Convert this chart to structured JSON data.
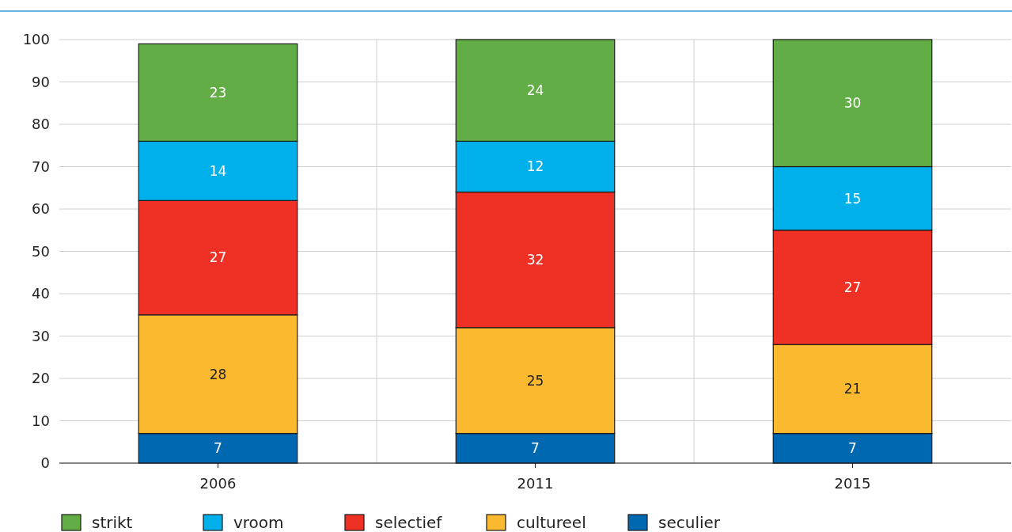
{
  "chart_data": {
    "type": "bar",
    "stacked": true,
    "categories": [
      "2006",
      "2011",
      "2015"
    ],
    "series": [
      {
        "name": "seculier",
        "color": "#0067b1",
        "values": [
          7,
          7,
          7
        ]
      },
      {
        "name": "cultureel",
        "color": "#fbb92f",
        "values": [
          28,
          25,
          21
        ]
      },
      {
        "name": "selectief",
        "color": "#ee3124",
        "values": [
          27,
          32,
          27
        ]
      },
      {
        "name": "vroom",
        "color": "#00b0ea",
        "values": [
          14,
          12,
          15
        ]
      },
      {
        "name": "strikt",
        "color": "#62ad46",
        "values": [
          23,
          24,
          30
        ]
      }
    ],
    "ylim": [
      0,
      100
    ],
    "yticks": [
      0,
      10,
      20,
      30,
      40,
      50,
      60,
      70,
      80,
      90,
      100
    ],
    "grid": true,
    "legend": "bottom",
    "data_labels": true
  }
}
